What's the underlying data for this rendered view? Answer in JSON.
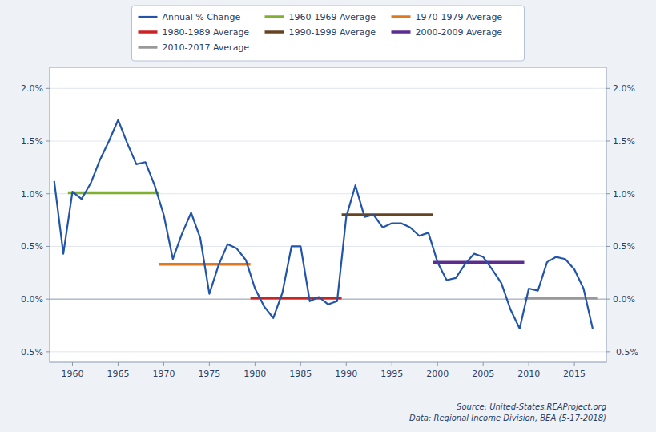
{
  "chart_data": {
    "type": "line",
    "x": [
      1958,
      1959,
      1960,
      1961,
      1962,
      1963,
      1964,
      1965,
      1966,
      1967,
      1968,
      1969,
      1970,
      1971,
      1972,
      1973,
      1974,
      1975,
      1976,
      1977,
      1978,
      1979,
      1980,
      1981,
      1982,
      1983,
      1984,
      1985,
      1986,
      1987,
      1988,
      1989,
      1990,
      1991,
      1992,
      1993,
      1994,
      1995,
      1996,
      1997,
      1998,
      1999,
      2000,
      2001,
      2002,
      2003,
      2004,
      2005,
      2006,
      2007,
      2008,
      2009,
      2010,
      2011,
      2012,
      2013,
      2014,
      2015,
      2016,
      2017
    ],
    "series": [
      {
        "name": "Annual % Change",
        "color": "#2255aa",
        "values": [
          0.0112,
          0.0043,
          0.0102,
          0.0095,
          0.011,
          0.0132,
          0.015,
          0.017,
          0.0148,
          0.0128,
          0.013,
          0.0108,
          0.008,
          0.0038,
          0.0062,
          0.0082,
          0.0058,
          0.0005,
          0.0032,
          0.0052,
          0.0048,
          0.0037,
          0.001,
          -0.0007,
          -0.0018,
          0.0006,
          0.005,
          0.005,
          -0.0002,
          0.0002,
          -0.0005,
          -0.0002,
          0.0078,
          0.0108,
          0.0078,
          0.008,
          0.0068,
          0.0072,
          0.0072,
          0.0068,
          0.006,
          0.0063,
          0.0035,
          0.0018,
          0.002,
          0.0033,
          0.0043,
          0.004,
          0.0028,
          0.0015,
          -0.001,
          -0.0028,
          0.001,
          0.0008,
          0.0035,
          0.004,
          0.0038,
          0.0028,
          0.001,
          -0.0028
        ]
      },
      {
        "name": "1980-1989 Average",
        "color": "#cc2222",
        "x": [
          1979.5,
          1989.5
        ],
        "values": [
          0.0001,
          0.0001
        ]
      },
      {
        "name": "2010-2017 Average",
        "color": "#999999",
        "x": [
          2009.5,
          2017.5
        ],
        "values": [
          0.0001,
          0.0001
        ]
      },
      {
        "name": "1960-1969 Average",
        "color": "#80b030",
        "x": [
          1959.5,
          1969.5
        ],
        "values": [
          0.0101,
          0.0101
        ]
      },
      {
        "name": "1990-1999 Average",
        "color": "#664422",
        "x": [
          1989.5,
          1999.5
        ],
        "values": [
          0.008,
          0.008
        ]
      },
      {
        "name": "1970-1979 Average",
        "color": "#e07820",
        "x": [
          1969.5,
          1979.5
        ],
        "values": [
          0.0033,
          0.0033
        ]
      },
      {
        "name": "2000-2009 Average",
        "color": "#5b2d8e",
        "x": [
          1999.5,
          2009.5
        ],
        "values": [
          0.0035,
          0.0035
        ]
      }
    ],
    "xlim": [
      1957.5,
      2018.5
    ],
    "xticks": [
      1960,
      1965,
      1970,
      1975,
      1980,
      1985,
      1990,
      1995,
      2000,
      2005,
      2010,
      2015
    ],
    "ylim": [
      -0.006,
      0.022
    ],
    "yticks": [
      {
        "value": -0.005,
        "label": "-0.5%"
      },
      {
        "value": 0.0,
        "label": "0.0%"
      },
      {
        "value": 0.005,
        "label": "0.5%"
      },
      {
        "value": 0.01,
        "label": "1.0%"
      },
      {
        "value": 0.015,
        "label": "1.5%"
      },
      {
        "value": 0.02,
        "label": "2.0%"
      }
    ],
    "grid": true,
    "legend": "top",
    "annotations": [
      "Source: United-States.REAProject.org",
      "Data: Regional Income Division, BEA (5-17-2018)"
    ]
  }
}
